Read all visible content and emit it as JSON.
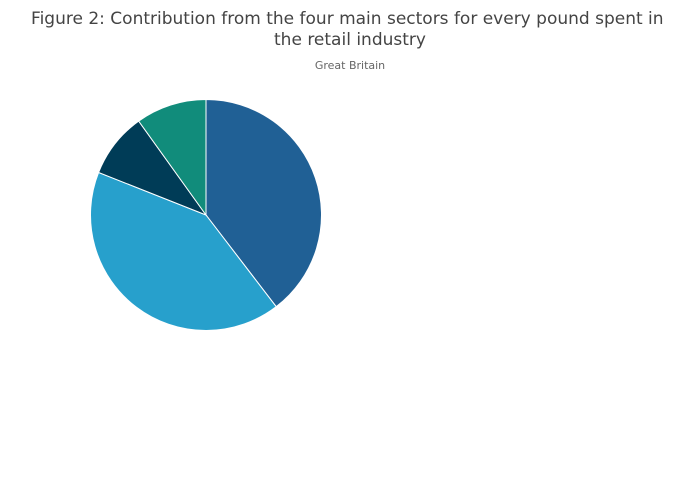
{
  "chart_data": {
    "type": "pie",
    "title": "Figure 2: Contribution from the four main sectors for every pound spent in the retail industry",
    "subtitle": "Great Britain",
    "values": [
      39.6,
      41.4,
      9.1,
      9.9
    ],
    "colors": [
      "#206095",
      "#27a0cc",
      "#003c57",
      "#118c7b"
    ],
    "direction": "clockwise"
  }
}
